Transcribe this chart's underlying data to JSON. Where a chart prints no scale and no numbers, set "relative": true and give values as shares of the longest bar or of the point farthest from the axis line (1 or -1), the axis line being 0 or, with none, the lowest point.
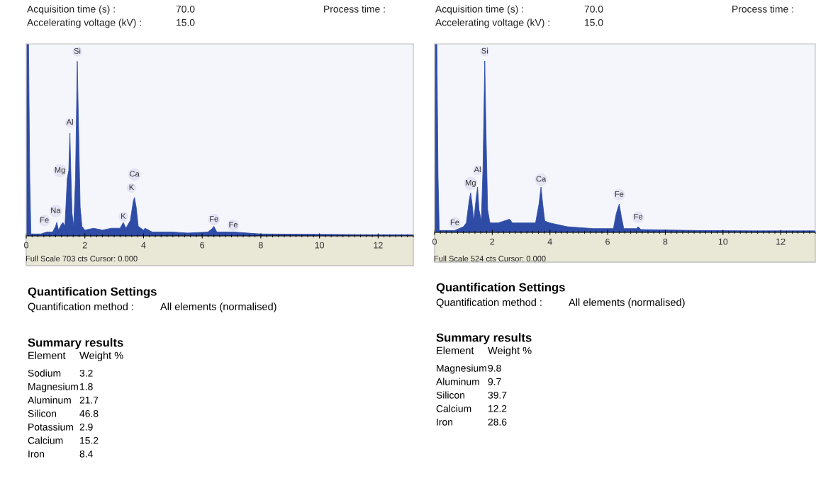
{
  "chart_data": [
    {
      "type": "area",
      "relative": true,
      "xlim": [
        0,
        13.2
      ],
      "xticks": [
        0,
        2,
        4,
        6,
        8,
        10,
        12
      ],
      "grid": false,
      "color": "#2e4ca6",
      "annotations": [
        "Acquisition time (s) :",
        "70.0",
        "Process time :",
        "Accelerating voltage (kV) :",
        "15.0",
        "Full Scale 703 cts Cursor: 0.000",
        {
          "text": "Si",
          "x": 1.74,
          "y": 0.96
        },
        {
          "text": "Al",
          "x": 1.49,
          "y": 0.59
        },
        {
          "text": "Mg",
          "x": 1.15,
          "y": 0.34
        },
        {
          "text": "Ca",
          "x": 3.69,
          "y": 0.32
        },
        {
          "text": "K",
          "x": 3.59,
          "y": 0.25
        },
        {
          "text": "Na",
          "x": 1.0,
          "y": 0.13
        },
        {
          "text": "Fe",
          "x": 0.62,
          "y": 0.08
        },
        {
          "text": "K",
          "x": 3.31,
          "y": 0.1
        },
        {
          "text": "Fe",
          "x": 6.4,
          "y": 0.085
        },
        {
          "text": "Fe",
          "x": 7.06,
          "y": 0.055
        }
      ],
      "x": [
        0.0,
        0.02,
        0.08,
        0.12,
        0.16,
        0.5,
        0.7,
        0.9,
        1.0,
        1.04,
        1.1,
        1.2,
        1.25,
        1.32,
        1.4,
        1.45,
        1.49,
        1.52,
        1.56,
        1.62,
        1.68,
        1.74,
        1.78,
        1.84,
        1.9,
        2.0,
        2.3,
        2.6,
        2.9,
        3.2,
        3.31,
        3.4,
        3.55,
        3.65,
        3.69,
        3.75,
        3.82,
        4.0,
        4.05,
        4.3,
        5.0,
        5.5,
        6.2,
        6.35,
        6.4,
        6.5,
        7.06,
        8,
        10,
        12,
        13.2
      ],
      "values": [
        0.02,
        1.0,
        1.0,
        0.3,
        0.01,
        0.01,
        0.02,
        0.02,
        0.05,
        0.07,
        0.03,
        0.06,
        0.07,
        0.05,
        0.3,
        0.34,
        0.535,
        0.34,
        0.12,
        0.05,
        0.3,
        0.91,
        0.6,
        0.15,
        0.05,
        0.03,
        0.04,
        0.03,
        0.04,
        0.04,
        0.07,
        0.04,
        0.08,
        0.18,
        0.2,
        0.15,
        0.05,
        0.03,
        0.04,
        0.02,
        0.02,
        0.015,
        0.02,
        0.04,
        0.05,
        0.02,
        0.02,
        0.01,
        0.008,
        0.006,
        0.006
      ]
    },
    {
      "type": "other",
      "title": "Quantification Settings",
      "annotations": [
        "Quantification method :",
        "All elements (normalised)"
      ]
    },
    {
      "type": "other",
      "title": "Summary results",
      "annotations": [
        "Element",
        "Weight %",
        "Sodium",
        "3.2",
        "Magnesium",
        "1.8",
        "Aluminum",
        "21.7",
        "Silicon",
        "46.8",
        "Potassium",
        "2.9",
        "Calcium",
        "15.2",
        "Iron",
        "8.4"
      ]
    },
    {
      "type": "area",
      "relative": true,
      "xlim": [
        0,
        13.2
      ],
      "xticks": [
        0,
        2,
        4,
        6,
        8,
        10,
        12
      ],
      "grid": false,
      "color": "#2e4ca6",
      "annotations": [
        "Acquisition time (s) :",
        "70.0",
        "Process time :",
        "Accelerating voltage (kV) :",
        "15.0",
        "Full Scale 524 cts Cursor: 0.000",
        {
          "text": "Si",
          "x": 1.74,
          "y": 0.96
        },
        {
          "text": "Al",
          "x": 1.49,
          "y": 0.33
        },
        {
          "text": "Mg",
          "x": 1.25,
          "y": 0.26
        },
        {
          "text": "Ca",
          "x": 3.69,
          "y": 0.28
        },
        {
          "text": "Fe",
          "x": 6.4,
          "y": 0.2
        },
        {
          "text": "Fe",
          "x": 7.06,
          "y": 0.08
        },
        {
          "text": "Fe",
          "x": 0.7,
          "y": 0.05
        }
      ],
      "x": [
        0.0,
        0.02,
        0.08,
        0.12,
        0.16,
        0.7,
        1.0,
        1.1,
        1.2,
        1.25,
        1.3,
        1.36,
        1.44,
        1.49,
        1.54,
        1.62,
        1.68,
        1.74,
        1.78,
        1.84,
        1.92,
        2.2,
        2.6,
        2.7,
        3.2,
        3.5,
        3.62,
        3.69,
        3.75,
        3.82,
        4.0,
        4.6,
        5.5,
        6.2,
        6.3,
        6.4,
        6.48,
        6.56,
        7.0,
        7.06,
        7.15,
        9,
        11,
        13.2
      ],
      "values": [
        0.02,
        1.0,
        1.0,
        0.3,
        0.01,
        0.01,
        0.03,
        0.05,
        0.17,
        0.21,
        0.15,
        0.06,
        0.18,
        0.24,
        0.12,
        0.06,
        0.35,
        0.91,
        0.55,
        0.12,
        0.05,
        0.05,
        0.07,
        0.05,
        0.05,
        0.05,
        0.15,
        0.24,
        0.15,
        0.06,
        0.05,
        0.03,
        0.02,
        0.02,
        0.1,
        0.15,
        0.08,
        0.02,
        0.02,
        0.03,
        0.015,
        0.01,
        0.008,
        0.008
      ]
    },
    {
      "type": "other",
      "title": "Quantification Settings",
      "annotations": [
        "Quantification method :",
        "All elements (normalised)"
      ]
    },
    {
      "type": "other",
      "title": "Summary results",
      "annotations": [
        "Element",
        "Weight %",
        "Magnesium",
        "9.8",
        "Aluminum",
        "9.7",
        "Silicon",
        "39.7",
        "Calcium",
        "12.2",
        "Iron",
        "28.6"
      ]
    }
  ]
}
